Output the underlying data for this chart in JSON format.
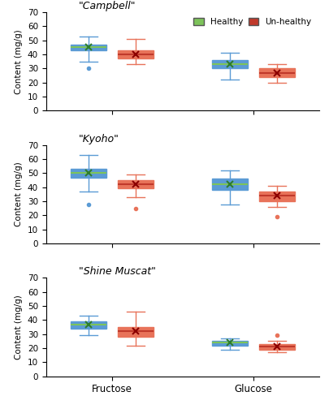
{
  "cultivars": [
    "\"Campbell\"",
    "\"Kyoho\"",
    "\"Shine Muscat\""
  ],
  "sugars": [
    "Fructose",
    "Glucose"
  ],
  "legend_labels": [
    "Healthy",
    "Un-healthy"
  ],
  "healthy_color": "#7DC35A",
  "unhealthy_color": "#C0392B",
  "whisker_color_healthy": "#5B9BD5",
  "whisker_color_unhealthy": "#E8735A",
  "ylabel": "Content (mg/g)",
  "ylim": [
    0,
    70
  ],
  "yticks": [
    0,
    10,
    20,
    30,
    40,
    50,
    60,
    70
  ],
  "boxes": {
    "Campbell": {
      "Fructose": {
        "healthy": {
          "q1": 43,
          "median": 45,
          "q3": 47,
          "mean": 45,
          "whislo": 35,
          "whishi": 53,
          "fliers": [
            30
          ]
        },
        "unhealthy": {
          "q1": 37,
          "median": 40,
          "q3": 43,
          "mean": 40,
          "whislo": 33,
          "whishi": 51,
          "fliers": []
        }
      },
      "Glucose": {
        "healthy": {
          "q1": 30,
          "median": 33,
          "q3": 36,
          "mean": 33,
          "whislo": 22,
          "whishi": 41,
          "fliers": []
        },
        "unhealthy": {
          "q1": 24,
          "median": 27,
          "q3": 30,
          "mean": 27,
          "whislo": 20,
          "whishi": 33,
          "fliers": []
        }
      }
    },
    "Kyoho": {
      "Fructose": {
        "healthy": {
          "q1": 47,
          "median": 50,
          "q3": 53,
          "mean": 50,
          "whislo": 37,
          "whishi": 63,
          "fliers": [
            28
          ]
        },
        "unhealthy": {
          "q1": 39,
          "median": 42,
          "q3": 45,
          "mean": 42,
          "whislo": 33,
          "whishi": 49,
          "fliers": [
            25
          ]
        }
      },
      "Glucose": {
        "healthy": {
          "q1": 38,
          "median": 42,
          "q3": 46,
          "mean": 42,
          "whislo": 28,
          "whishi": 52,
          "fliers": []
        },
        "unhealthy": {
          "q1": 30,
          "median": 34,
          "q3": 37,
          "mean": 34,
          "whislo": 26,
          "whishi": 41,
          "fliers": [
            19
          ]
        }
      }
    },
    "Shine Muscat": {
      "Fructose": {
        "healthy": {
          "q1": 34,
          "median": 37,
          "q3": 39,
          "mean": 37,
          "whislo": 29,
          "whishi": 43,
          "fliers": []
        },
        "unhealthy": {
          "q1": 28,
          "median": 32,
          "q3": 35,
          "mean": 32,
          "whislo": 22,
          "whishi": 46,
          "fliers": []
        }
      },
      "Glucose": {
        "healthy": {
          "q1": 22,
          "median": 24,
          "q3": 25,
          "mean": 24,
          "whislo": 19,
          "whishi": 27,
          "fliers": []
        },
        "unhealthy": {
          "q1": 19,
          "median": 21,
          "q3": 23,
          "mean": 21,
          "whislo": 17,
          "whishi": 25,
          "fliers": [
            29
          ]
        }
      }
    }
  }
}
